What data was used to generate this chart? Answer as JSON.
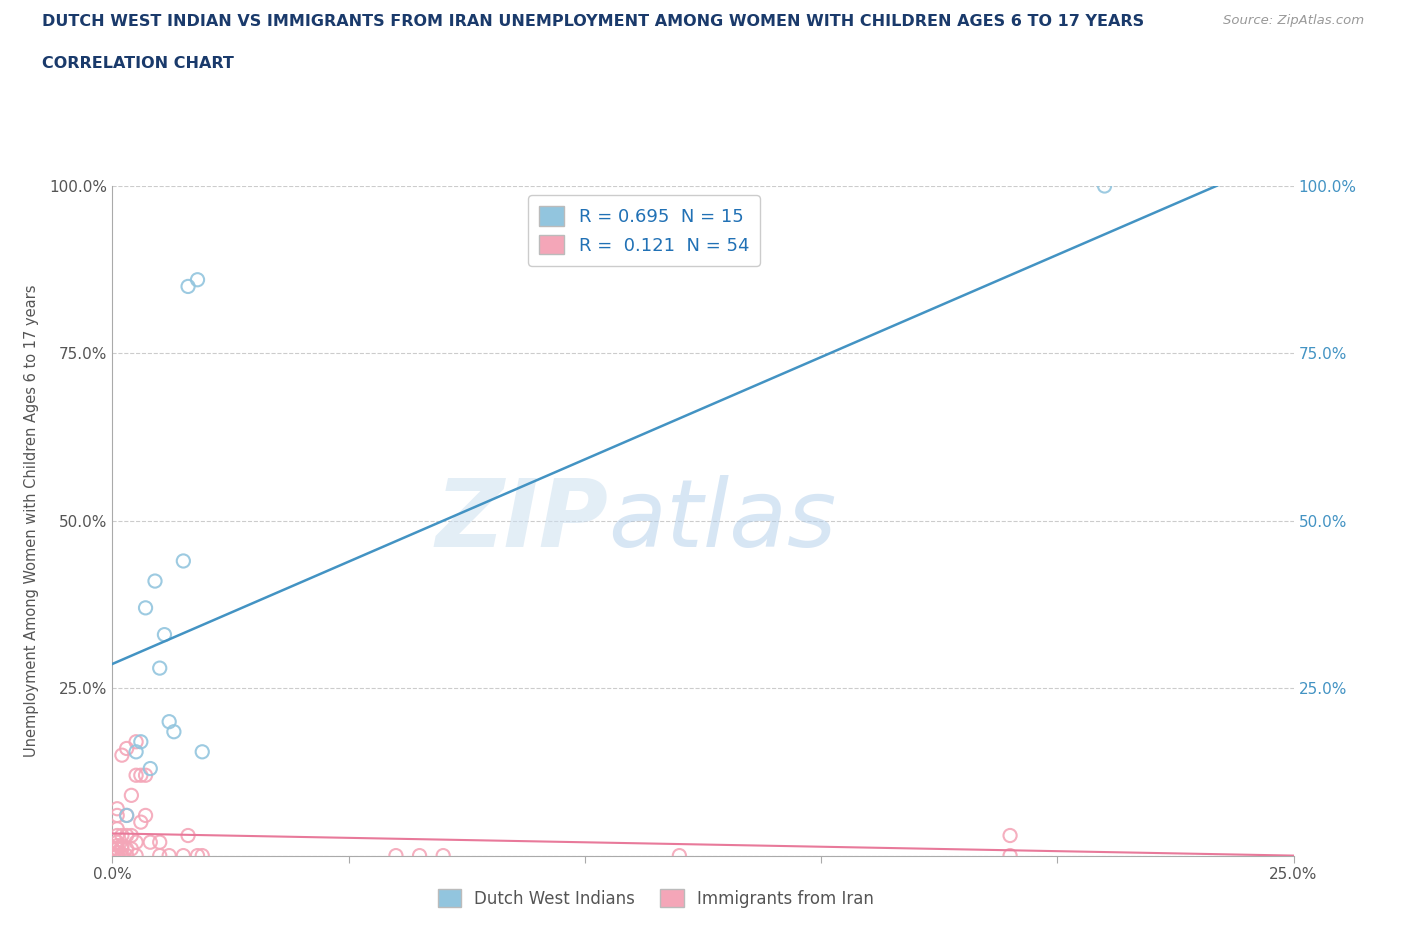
{
  "title_line1": "DUTCH WEST INDIAN VS IMMIGRANTS FROM IRAN UNEMPLOYMENT AMONG WOMEN WITH CHILDREN AGES 6 TO 17 YEARS",
  "title_line2": "CORRELATION CHART",
  "source_text": "Source: ZipAtlas.com",
  "ylabel": "Unemployment Among Women with Children Ages 6 to 17 years",
  "xlim": [
    0.0,
    0.25
  ],
  "ylim": [
    0.0,
    1.0
  ],
  "xticks": [
    0.0,
    0.05,
    0.1,
    0.15,
    0.2,
    0.25
  ],
  "yticks": [
    0.0,
    0.25,
    0.5,
    0.75,
    1.0
  ],
  "xtick_labels": [
    "0.0%",
    "",
    "",
    "",
    "",
    "25.0%"
  ],
  "ytick_labels_left": [
    "",
    "25.0%",
    "50.0%",
    "75.0%",
    "100.0%"
  ],
  "ytick_labels_right": [
    "",
    "25.0%",
    "50.0%",
    "75.0%",
    "100.0%"
  ],
  "watermark_zip": "ZIP",
  "watermark_atlas": "atlas",
  "blue_color": "#92c5de",
  "pink_color": "#f4a6b8",
  "blue_line_color": "#4393c3",
  "pink_line_color": "#e8799a",
  "R_blue": 0.695,
  "N_blue": 15,
  "R_pink": 0.121,
  "N_pink": 54,
  "legend_label_blue": "Dutch West Indians",
  "legend_label_pink": "Immigrants from Iran",
  "title_color": "#1a3a6b",
  "right_tick_color": "#4393c3",
  "grid_color": "#cccccc",
  "blue_scatter_x": [
    0.003,
    0.005,
    0.006,
    0.007,
    0.008,
    0.009,
    0.01,
    0.011,
    0.012,
    0.013,
    0.015,
    0.016,
    0.018,
    0.019,
    0.21
  ],
  "blue_scatter_y": [
    0.06,
    0.155,
    0.17,
    0.37,
    0.13,
    0.41,
    0.28,
    0.33,
    0.2,
    0.185,
    0.44,
    0.85,
    0.86,
    0.155,
    1.0
  ],
  "pink_scatter_x": [
    0.0,
    0.0,
    0.0,
    0.0,
    0.0,
    0.0,
    0.0,
    0.0,
    0.001,
    0.001,
    0.001,
    0.001,
    0.001,
    0.001,
    0.001,
    0.001,
    0.001,
    0.001,
    0.001,
    0.002,
    0.002,
    0.002,
    0.002,
    0.002,
    0.003,
    0.003,
    0.003,
    0.003,
    0.003,
    0.004,
    0.004,
    0.004,
    0.005,
    0.005,
    0.005,
    0.005,
    0.006,
    0.006,
    0.007,
    0.007,
    0.008,
    0.01,
    0.01,
    0.012,
    0.015,
    0.016,
    0.018,
    0.019,
    0.06,
    0.065,
    0.07,
    0.12,
    0.19,
    0.19
  ],
  "pink_scatter_y": [
    0.0,
    0.0,
    0.0,
    0.0,
    0.0,
    0.01,
    0.01,
    0.01,
    0.0,
    0.0,
    0.0,
    0.005,
    0.01,
    0.015,
    0.02,
    0.03,
    0.04,
    0.06,
    0.07,
    0.0,
    0.01,
    0.015,
    0.03,
    0.15,
    0.0,
    0.01,
    0.03,
    0.06,
    0.16,
    0.01,
    0.03,
    0.09,
    0.0,
    0.02,
    0.12,
    0.17,
    0.05,
    0.12,
    0.06,
    0.12,
    0.02,
    0.0,
    0.02,
    0.0,
    0.0,
    0.03,
    0.0,
    0.0,
    0.0,
    0.0,
    0.0,
    0.0,
    0.0,
    0.03
  ],
  "background_color": "#ffffff"
}
